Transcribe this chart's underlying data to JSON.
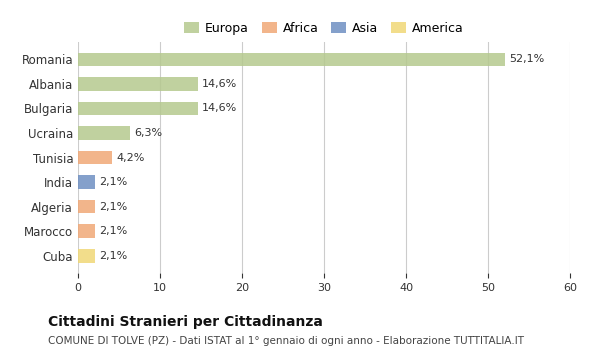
{
  "categories": [
    "Romania",
    "Albania",
    "Bulgaria",
    "Ucraina",
    "Tunisia",
    "India",
    "Algeria",
    "Marocco",
    "Cuba"
  ],
  "values": [
    52.1,
    14.6,
    14.6,
    6.3,
    4.2,
    2.1,
    2.1,
    2.1,
    2.1
  ],
  "labels": [
    "52,1%",
    "14,6%",
    "14,6%",
    "6,3%",
    "4,2%",
    "2,1%",
    "2,1%",
    "2,1%",
    "2,1%"
  ],
  "colors": [
    "#b5c98e",
    "#b5c98e",
    "#b5c98e",
    "#b5c98e",
    "#f0a877",
    "#6e8fc2",
    "#f0a877",
    "#f0a877",
    "#f0d877"
  ],
  "legend": [
    {
      "label": "Europa",
      "color": "#b5c98e"
    },
    {
      "label": "Africa",
      "color": "#f0a877"
    },
    {
      "label": "Asia",
      "color": "#6e8fc2"
    },
    {
      "label": "America",
      "color": "#f0d877"
    }
  ],
  "xlim": [
    0,
    60
  ],
  "xticks": [
    0,
    10,
    20,
    30,
    40,
    50,
    60
  ],
  "title": "Cittadini Stranieri per Cittadinanza",
  "subtitle": "COMUNE DI TOLVE (PZ) - Dati ISTAT al 1° gennaio di ogni anno - Elaborazione TUTTITALIA.IT",
  "bg_color": "#ffffff",
  "grid_color": "#cccccc",
  "bar_height": 0.55
}
